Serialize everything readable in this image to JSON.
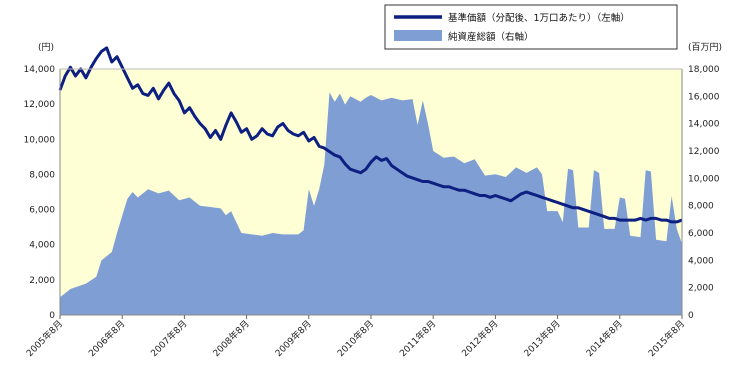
{
  "chart_data": {
    "type": "line+area",
    "title": "",
    "left_axis": {
      "unit": "(円)",
      "range": [
        0,
        14000
      ],
      "ticks": [
        "0",
        "2,000",
        "4,000",
        "6,000",
        "8,000",
        "10,000",
        "12,000",
        "14,000"
      ]
    },
    "right_axis": {
      "unit": "(百万円)",
      "range": [
        0,
        18000
      ],
      "ticks": [
        "0",
        "2,000",
        "4,000",
        "6,000",
        "8,000",
        "10,000",
        "12,000",
        "14,000",
        "16,000",
        "18,000"
      ]
    },
    "x_range": [
      "2005-08",
      "2015-08"
    ],
    "x_ticks": [
      {
        "date": "2005-08",
        "label": "2005年8月"
      },
      {
        "date": "2006-08",
        "label": "2006年8月"
      },
      {
        "date": "2007-08",
        "label": "2007年8月"
      },
      {
        "date": "2008-08",
        "label": "2008年8月"
      },
      {
        "date": "2009-08",
        "label": "2009年8月"
      },
      {
        "date": "2010-08",
        "label": "2010年8月"
      },
      {
        "date": "2011-08",
        "label": "2011年8月"
      },
      {
        "date": "2012-08",
        "label": "2012年8月"
      },
      {
        "date": "2013-08",
        "label": "2013年8月"
      },
      {
        "date": "2014-08",
        "label": "2014年8月"
      },
      {
        "date": "2015-08",
        "label": "2015年8月"
      }
    ],
    "legend_position": "top-right",
    "colors": {
      "plot_bg": "#ffffd5",
      "area": "#7f9fd4",
      "line": "#0d1f80"
    },
    "series": [
      {
        "name": "基準価額（分配後、1万口あたり）（左軸）",
        "type": "line",
        "axis": "left",
        "points": [
          [
            "2005-08",
            12800
          ],
          [
            "2005-09",
            13600
          ],
          [
            "2005-10",
            14100
          ],
          [
            "2005-11",
            13600
          ],
          [
            "2005-12",
            14000
          ],
          [
            "2006-01",
            13500
          ],
          [
            "2006-02",
            14100
          ],
          [
            "2006-03",
            14600
          ],
          [
            "2006-04",
            15000
          ],
          [
            "2006-05",
            15200
          ],
          [
            "2006-06",
            14400
          ],
          [
            "2006-07",
            14700
          ],
          [
            "2006-08",
            14100
          ],
          [
            "2006-09",
            13500
          ],
          [
            "2006-10",
            12900
          ],
          [
            "2006-11",
            13100
          ],
          [
            "2006-12",
            12600
          ],
          [
            "2007-01",
            12500
          ],
          [
            "2007-02",
            12900
          ],
          [
            "2007-03",
            12300
          ],
          [
            "2007-04",
            12800
          ],
          [
            "2007-05",
            13200
          ],
          [
            "2007-06",
            12600
          ],
          [
            "2007-07",
            12200
          ],
          [
            "2007-08",
            11500
          ],
          [
            "2007-09",
            11800
          ],
          [
            "2007-10",
            11300
          ],
          [
            "2007-11",
            10900
          ],
          [
            "2007-12",
            10600
          ],
          [
            "2008-01",
            10100
          ],
          [
            "2008-02",
            10500
          ],
          [
            "2008-03",
            10000
          ],
          [
            "2008-04",
            10800
          ],
          [
            "2008-05",
            11500
          ],
          [
            "2008-06",
            11000
          ],
          [
            "2008-07",
            10400
          ],
          [
            "2008-08",
            10600
          ],
          [
            "2008-09",
            10000
          ],
          [
            "2008-10",
            10200
          ],
          [
            "2008-11",
            10600
          ],
          [
            "2008-12",
            10300
          ],
          [
            "2009-01",
            10200
          ],
          [
            "2009-02",
            10700
          ],
          [
            "2009-03",
            10900
          ],
          [
            "2009-04",
            10500
          ],
          [
            "2009-05",
            10300
          ],
          [
            "2009-06",
            10200
          ],
          [
            "2009-07",
            10400
          ],
          [
            "2009-08",
            9900
          ],
          [
            "2009-09",
            10100
          ],
          [
            "2009-10",
            9600
          ],
          [
            "2009-11",
            9500
          ],
          [
            "2009-12",
            9300
          ],
          [
            "2010-01",
            9100
          ],
          [
            "2010-02",
            9000
          ],
          [
            "2010-03",
            8600
          ],
          [
            "2010-04",
            8300
          ],
          [
            "2010-05",
            8200
          ],
          [
            "2010-06",
            8100
          ],
          [
            "2010-07",
            8300
          ],
          [
            "2010-08",
            8700
          ],
          [
            "2010-09",
            9000
          ],
          [
            "2010-10",
            8800
          ],
          [
            "2010-11",
            8900
          ],
          [
            "2010-12",
            8500
          ],
          [
            "2011-01",
            8300
          ],
          [
            "2011-02",
            8100
          ],
          [
            "2011-03",
            7900
          ],
          [
            "2011-04",
            7800
          ],
          [
            "2011-05",
            7700
          ],
          [
            "2011-06",
            7600
          ],
          [
            "2011-07",
            7600
          ],
          [
            "2011-08",
            7500
          ],
          [
            "2011-09",
            7400
          ],
          [
            "2011-10",
            7300
          ],
          [
            "2011-11",
            7300
          ],
          [
            "2011-12",
            7200
          ],
          [
            "2012-01",
            7100
          ],
          [
            "2012-02",
            7100
          ],
          [
            "2012-03",
            7000
          ],
          [
            "2012-04",
            6900
          ],
          [
            "2012-05",
            6800
          ],
          [
            "2012-06",
            6800
          ],
          [
            "2012-07",
            6700
          ],
          [
            "2012-08",
            6800
          ],
          [
            "2012-09",
            6700
          ],
          [
            "2012-10",
            6600
          ],
          [
            "2012-11",
            6500
          ],
          [
            "2012-12",
            6700
          ],
          [
            "2013-01",
            6900
          ],
          [
            "2013-02",
            7000
          ],
          [
            "2013-03",
            6900
          ],
          [
            "2013-04",
            6800
          ],
          [
            "2013-05",
            6700
          ],
          [
            "2013-06",
            6600
          ],
          [
            "2013-07",
            6500
          ],
          [
            "2013-08",
            6400
          ],
          [
            "2013-09",
            6300
          ],
          [
            "2013-10",
            6200
          ],
          [
            "2013-11",
            6100
          ],
          [
            "2013-12",
            6100
          ],
          [
            "2014-01",
            6000
          ],
          [
            "2014-02",
            5900
          ],
          [
            "2014-03",
            5800
          ],
          [
            "2014-04",
            5700
          ],
          [
            "2014-05",
            5600
          ],
          [
            "2014-06",
            5500
          ],
          [
            "2014-07",
            5500
          ],
          [
            "2014-08",
            5400
          ],
          [
            "2014-09",
            5400
          ],
          [
            "2014-10",
            5400
          ],
          [
            "2014-11",
            5400
          ],
          [
            "2014-12",
            5500
          ],
          [
            "2015-01",
            5400
          ],
          [
            "2015-02",
            5500
          ],
          [
            "2015-03",
            5500
          ],
          [
            "2015-04",
            5400
          ],
          [
            "2015-05",
            5400
          ],
          [
            "2015-06",
            5300
          ],
          [
            "2015-07",
            5300
          ],
          [
            "2015-08",
            5400
          ]
        ]
      },
      {
        "name": "純資産総額（右軸）",
        "type": "area",
        "axis": "right",
        "points": [
          [
            "2005-08",
            1300
          ],
          [
            "2005-10",
            1900
          ],
          [
            "2006-01",
            2300
          ],
          [
            "2006-03",
            2800
          ],
          [
            "2006-04",
            4000
          ],
          [
            "2006-06",
            4600
          ],
          [
            "2006-07",
            6000
          ],
          [
            "2006-09",
            8500
          ],
          [
            "2006-10",
            9000
          ],
          [
            "2006-11",
            8600
          ],
          [
            "2007-01",
            9200
          ],
          [
            "2007-03",
            8900
          ],
          [
            "2007-05",
            9100
          ],
          [
            "2007-07",
            8400
          ],
          [
            "2007-09",
            8600
          ],
          [
            "2007-11",
            8000
          ],
          [
            "2008-01",
            7900
          ],
          [
            "2008-03",
            7800
          ],
          [
            "2008-04",
            7300
          ],
          [
            "2008-05",
            7600
          ],
          [
            "2008-07",
            6000
          ],
          [
            "2008-09",
            5900
          ],
          [
            "2008-11",
            5800
          ],
          [
            "2009-01",
            6000
          ],
          [
            "2009-03",
            5900
          ],
          [
            "2009-06",
            5900
          ],
          [
            "2009-07",
            6200
          ],
          [
            "2009-08",
            9200
          ],
          [
            "2009-09",
            8000
          ],
          [
            "2009-10",
            9200
          ],
          [
            "2009-11",
            11000
          ],
          [
            "2009-12",
            16300
          ],
          [
            "2010-01",
            15600
          ],
          [
            "2010-02",
            16200
          ],
          [
            "2010-03",
            15400
          ],
          [
            "2010-04",
            16000
          ],
          [
            "2010-06",
            15600
          ],
          [
            "2010-07",
            15900
          ],
          [
            "2010-08",
            16100
          ],
          [
            "2010-10",
            15700
          ],
          [
            "2010-12",
            15900
          ],
          [
            "2011-02",
            15700
          ],
          [
            "2011-04",
            15800
          ],
          [
            "2011-05",
            13900
          ],
          [
            "2011-06",
            15700
          ],
          [
            "2011-07",
            14000
          ],
          [
            "2011-08",
            12000
          ],
          [
            "2011-10",
            11500
          ],
          [
            "2011-12",
            11600
          ],
          [
            "2012-02",
            11100
          ],
          [
            "2012-04",
            11400
          ],
          [
            "2012-06",
            10200
          ],
          [
            "2012-08",
            10300
          ],
          [
            "2012-10",
            10100
          ],
          [
            "2012-12",
            10800
          ],
          [
            "2013-02",
            10400
          ],
          [
            "2013-04",
            10800
          ],
          [
            "2013-05",
            10300
          ],
          [
            "2013-06",
            7600
          ],
          [
            "2013-08",
            7600
          ],
          [
            "2013-09",
            6800
          ],
          [
            "2013-10",
            10700
          ],
          [
            "2013-11",
            10600
          ],
          [
            "2013-12",
            6400
          ],
          [
            "2014-02",
            6400
          ],
          [
            "2014-03",
            10600
          ],
          [
            "2014-04",
            10400
          ],
          [
            "2014-05",
            6300
          ],
          [
            "2014-07",
            6300
          ],
          [
            "2014-08",
            8600
          ],
          [
            "2014-09",
            8500
          ],
          [
            "2014-10",
            5800
          ],
          [
            "2014-12",
            5700
          ],
          [
            "2015-01",
            10600
          ],
          [
            "2015-02",
            10500
          ],
          [
            "2015-03",
            5500
          ],
          [
            "2015-05",
            5400
          ],
          [
            "2015-06",
            8700
          ],
          [
            "2015-07",
            6300
          ],
          [
            "2015-08",
            5200
          ]
        ]
      }
    ]
  }
}
